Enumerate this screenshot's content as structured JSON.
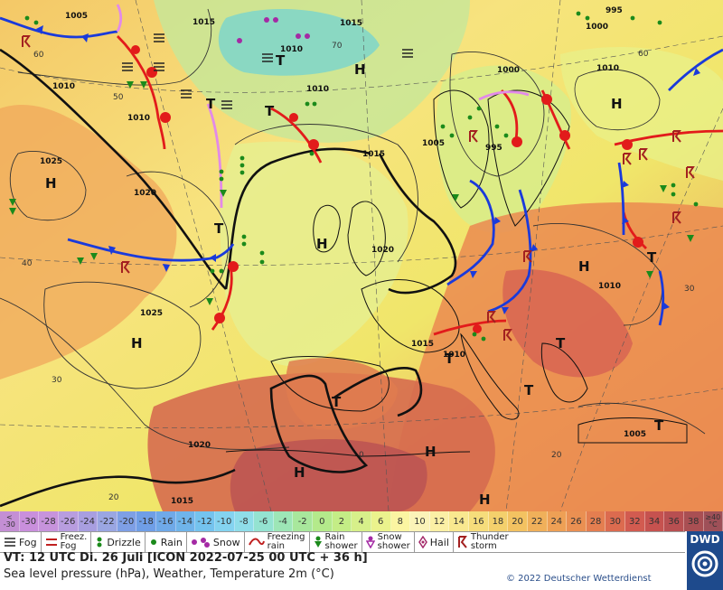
{
  "map": {
    "pressure_labels": [
      "1005",
      "1015",
      "1000",
      "995",
      "1010",
      "1015",
      "1015",
      "1020",
      "1025",
      "1020",
      "1025",
      "1010",
      "1010",
      "1010",
      "1005",
      "1000",
      "995",
      "1010",
      "1015",
      "1010",
      "1005",
      "1020",
      "1015",
      "1010"
    ],
    "pressure_centers": [
      "H",
      "H",
      "H",
      "T",
      "H",
      "H",
      "H",
      "T",
      "T",
      "H",
      "T",
      "T",
      "H",
      "H",
      "T",
      "T",
      "T",
      "T",
      "T"
    ],
    "temperature_isotherm_labels": [
      "60",
      "40",
      "30",
      "20",
      "0",
      "50",
      "70",
      "60",
      "30",
      "20"
    ],
    "colors": {
      "front_cold": "#1a3adb",
      "front_warm": "#e21b1b",
      "front_occluded": "#e28ae8",
      "isobar_main": "#111111",
      "isobar_thin": "#333333",
      "land_outline": "#111111"
    }
  },
  "scale": {
    "first": [
      "<",
      "-30"
    ],
    "values": [
      "-30",
      "-28",
      "-26",
      "-24",
      "-22",
      "-20",
      "-18",
      "-16",
      "-14",
      "-12",
      "-10",
      "-8",
      "-6",
      "-4",
      "-2",
      "0",
      "2",
      "4",
      "6",
      "8",
      "10",
      "12",
      "14",
      "16",
      "18",
      "20",
      "22",
      "24",
      "26",
      "28",
      "30",
      "32",
      "34",
      "36",
      "38"
    ],
    "last": [
      "≥40",
      "°C"
    ],
    "colors": [
      "#c48fd4",
      "#c98fdc",
      "#c793dc",
      "#b89ddf",
      "#a89ee0",
      "#9aa6e2",
      "#7e9fe5",
      "#6f9ee6",
      "#6fa9e8",
      "#6fb4ea",
      "#74c3ee",
      "#84d3f0",
      "#8fdde9",
      "#94e3d1",
      "#9de6b6",
      "#a8e79c",
      "#b4ea8b",
      "#c4ed86",
      "#d7f08a",
      "#ebf38d",
      "#fbf5a2",
      "#fbf3b8",
      "#fbf0a5",
      "#f9e88f",
      "#f6dd7b",
      "#f4d06c",
      "#f3c261",
      "#f0b05a",
      "#eea055",
      "#ea9052",
      "#e47e50",
      "#dc6b4f",
      "#d25b50",
      "#c6524f",
      "#b84f51",
      "#a94f53",
      "#9e5058"
    ]
  },
  "legend": {
    "fog": "Fog",
    "freezing_fog": [
      "Freez.",
      "Fog"
    ],
    "drizzle": "Drizzle",
    "rain": "Rain",
    "snow": "Snow",
    "freezing_rain": [
      "Freezing",
      "rain"
    ],
    "rain_shower": [
      "Rain",
      "shower"
    ],
    "snow_shower": [
      "Snow",
      "shower"
    ],
    "hail": "Hail",
    "thunderstorm": [
      "Thunder",
      "storm"
    ]
  },
  "footer": {
    "valid_time": "VT: 12 UTC Di.  26 Juli [ICON 2022-07-25  00 UTC + 36 h]",
    "description": "Sea level pressure (hPa), Weather, Temperature 2m (°C)",
    "copyright": "© 2022 Deutscher Wetterdienst",
    "logo": "DWD"
  }
}
